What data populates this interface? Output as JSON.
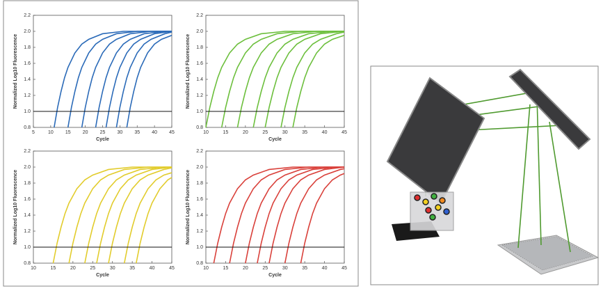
{
  "chart_data": [
    {
      "type": "line",
      "x_label": "Cycle",
      "y_label": "Normalized Log10 Fluorescence",
      "color": "#2a6ab8",
      "threshold": 1,
      "xlim": [
        5,
        45
      ],
      "xticks": [
        5,
        10,
        15,
        20,
        25,
        30,
        35,
        40,
        45
      ],
      "ylim": [
        0.8,
        2.2
      ],
      "yticks": [
        0.8,
        {
          "value": 1,
          "label": "1.0"
        },
        1.2,
        1.4,
        1.6,
        1.8,
        {
          "value": 2,
          "label": "2.0"
        },
        2.2
      ],
      "series": [
        {
          "x": [
            11,
            12,
            13,
            14,
            15,
            17,
            19,
            21,
            25,
            31,
            45
          ],
          "values": [
            0.8,
            1.05,
            1.25,
            1.42,
            1.55,
            1.73,
            1.84,
            1.9,
            1.97,
            2,
            2
          ]
        },
        {
          "x": [
            15,
            16,
            17,
            18,
            19,
            21,
            23,
            25,
            29,
            35,
            45
          ],
          "values": [
            0.8,
            1.05,
            1.25,
            1.42,
            1.55,
            1.73,
            1.84,
            1.9,
            1.97,
            2,
            2
          ]
        },
        {
          "x": [
            19,
            20,
            21,
            22,
            23,
            25,
            27,
            29,
            33,
            39,
            45
          ],
          "values": [
            0.8,
            1.05,
            1.25,
            1.42,
            1.55,
            1.73,
            1.84,
            1.9,
            1.97,
            2,
            2
          ]
        },
        {
          "x": [
            23,
            24,
            25,
            26,
            27,
            29,
            31,
            33,
            37,
            43,
            45
          ],
          "values": [
            0.8,
            1.05,
            1.25,
            1.42,
            1.55,
            1.73,
            1.84,
            1.9,
            1.97,
            2,
            2
          ]
        },
        {
          "x": [
            26,
            27,
            28,
            29,
            30,
            32,
            34,
            36,
            40,
            45
          ],
          "values": [
            0.8,
            1.05,
            1.25,
            1.42,
            1.55,
            1.73,
            1.84,
            1.9,
            1.97,
            2
          ]
        },
        {
          "x": [
            29,
            30,
            31,
            32,
            33,
            35,
            37,
            39,
            43,
            45
          ],
          "values": [
            0.8,
            1.05,
            1.25,
            1.42,
            1.55,
            1.73,
            1.84,
            1.9,
            1.97,
            1.99
          ]
        },
        {
          "x": [
            32,
            33,
            34,
            35,
            36,
            38,
            40,
            42,
            45
          ],
          "values": [
            0.8,
            1.05,
            1.25,
            1.42,
            1.55,
            1.73,
            1.84,
            1.9,
            1.95
          ]
        }
      ]
    },
    {
      "type": "line",
      "x_label": "Cycle",
      "y_label": "Normalized Log10 Fluorescence",
      "color": "#6cbf3c",
      "threshold": 1,
      "xlim": [
        10,
        45
      ],
      "xticks": [
        10,
        15,
        20,
        25,
        30,
        35,
        40,
        45
      ],
      "ylim": [
        0.8,
        2.2
      ],
      "yticks": [
        0.8,
        {
          "value": 1,
          "label": "1.0"
        },
        1.2,
        1.4,
        1.6,
        1.8,
        {
          "value": 2,
          "label": "2.0"
        },
        2.2
      ],
      "series": [
        {
          "x": [
            10,
            11,
            12,
            13,
            14,
            16,
            18,
            20,
            24,
            30,
            45
          ],
          "values": [
            0.8,
            1.05,
            1.25,
            1.42,
            1.55,
            1.73,
            1.84,
            1.9,
            1.97,
            2,
            2
          ]
        },
        {
          "x": [
            14,
            15,
            16,
            17,
            18,
            20,
            22,
            24,
            28,
            34,
            45
          ],
          "values": [
            0.8,
            1.05,
            1.25,
            1.42,
            1.55,
            1.73,
            1.84,
            1.9,
            1.97,
            2,
            2
          ]
        },
        {
          "x": [
            18,
            19,
            20,
            21,
            22,
            24,
            26,
            28,
            32,
            38,
            45
          ],
          "values": [
            0.8,
            1.05,
            1.25,
            1.42,
            1.55,
            1.73,
            1.84,
            1.9,
            1.97,
            2,
            2
          ]
        },
        {
          "x": [
            22,
            23,
            24,
            25,
            26,
            28,
            30,
            32,
            36,
            42,
            45
          ],
          "values": [
            0.8,
            1.05,
            1.25,
            1.42,
            1.55,
            1.73,
            1.84,
            1.9,
            1.97,
            2,
            2
          ]
        },
        {
          "x": [
            25,
            26,
            27,
            28,
            29,
            31,
            33,
            35,
            39,
            45
          ],
          "values": [
            0.8,
            1.05,
            1.25,
            1.42,
            1.55,
            1.73,
            1.84,
            1.9,
            1.97,
            2
          ]
        },
        {
          "x": [
            29,
            30,
            31,
            32,
            33,
            35,
            37,
            39,
            43,
            45
          ],
          "values": [
            0.8,
            1.05,
            1.25,
            1.42,
            1.55,
            1.73,
            1.84,
            1.9,
            1.97,
            1.99
          ]
        },
        {
          "x": [
            32,
            33,
            34,
            35,
            36,
            38,
            40,
            42,
            45
          ],
          "values": [
            0.8,
            1.05,
            1.25,
            1.42,
            1.55,
            1.73,
            1.84,
            1.9,
            1.95
          ]
        }
      ]
    },
    {
      "type": "line",
      "x_label": "Cycle",
      "y_label": "Normalized Log10 Fluorescence",
      "color": "#e2cc2c",
      "threshold": 1,
      "xlim": [
        10,
        45
      ],
      "xticks": [
        10,
        15,
        20,
        25,
        30,
        35,
        40,
        45
      ],
      "ylim": [
        0.8,
        2.2
      ],
      "yticks": [
        0.8,
        {
          "value": 1,
          "label": "1.0"
        },
        1.2,
        1.4,
        1.6,
        1.8,
        {
          "value": 2,
          "label": "2.0"
        },
        2.2
      ],
      "series": [
        {
          "x": [
            15,
            16,
            17,
            18,
            19,
            21,
            23,
            25,
            29,
            35,
            45
          ],
          "values": [
            0.8,
            1.05,
            1.25,
            1.42,
            1.55,
            1.73,
            1.84,
            1.9,
            1.97,
            2,
            2
          ]
        },
        {
          "x": [
            19,
            20,
            21,
            22,
            23,
            25,
            27,
            29,
            33,
            39,
            45
          ],
          "values": [
            0.8,
            1.05,
            1.25,
            1.42,
            1.55,
            1.73,
            1.84,
            1.9,
            1.97,
            2,
            2
          ]
        },
        {
          "x": [
            23,
            24,
            25,
            26,
            27,
            29,
            31,
            33,
            37,
            43,
            45
          ],
          "values": [
            0.8,
            1.05,
            1.25,
            1.42,
            1.55,
            1.73,
            1.84,
            1.9,
            1.97,
            2,
            2
          ]
        },
        {
          "x": [
            26,
            27,
            28,
            29,
            30,
            32,
            34,
            36,
            40,
            45
          ],
          "values": [
            0.8,
            1.05,
            1.25,
            1.42,
            1.55,
            1.73,
            1.84,
            1.9,
            1.97,
            2
          ]
        },
        {
          "x": [
            29,
            30,
            31,
            32,
            33,
            35,
            37,
            39,
            43,
            45
          ],
          "values": [
            0.8,
            1.05,
            1.25,
            1.42,
            1.55,
            1.73,
            1.84,
            1.9,
            1.97,
            1.99
          ]
        },
        {
          "x": [
            33,
            34,
            35,
            36,
            37,
            39,
            41,
            43,
            45
          ],
          "values": [
            0.8,
            1.05,
            1.25,
            1.42,
            1.55,
            1.73,
            1.84,
            1.9,
            1.93
          ]
        },
        {
          "x": [
            36,
            37,
            38,
            39,
            40,
            42,
            44,
            45
          ],
          "values": [
            0.8,
            1.05,
            1.25,
            1.42,
            1.55,
            1.73,
            1.84,
            1.87
          ]
        }
      ]
    },
    {
      "type": "line",
      "x_label": "Cycle",
      "y_label": "Normalized Log10 Fluorescence",
      "color": "#d9403a",
      "threshold": 1,
      "xlim": [
        10,
        45
      ],
      "xticks": [
        10,
        15,
        20,
        25,
        30,
        35,
        40,
        45
      ],
      "ylim": [
        0.8,
        2.2
      ],
      "yticks": [
        0.8,
        {
          "value": 1,
          "label": "1.0"
        },
        1.2,
        1.4,
        1.6,
        1.8,
        {
          "value": 2,
          "label": "2.0"
        },
        2.2
      ],
      "series": [
        {
          "x": [
            12,
            13,
            14,
            15,
            16,
            18,
            20,
            22,
            26,
            32,
            45
          ],
          "values": [
            0.8,
            1.05,
            1.25,
            1.42,
            1.55,
            1.73,
            1.84,
            1.9,
            1.97,
            2,
            2
          ]
        },
        {
          "x": [
            16,
            17,
            18,
            19,
            20,
            22,
            24,
            26,
            30,
            36,
            45
          ],
          "values": [
            0.8,
            1.05,
            1.25,
            1.42,
            1.55,
            1.73,
            1.84,
            1.9,
            1.97,
            2,
            2
          ]
        },
        {
          "x": [
            20,
            21,
            22,
            23,
            24,
            26,
            28,
            30,
            34,
            40,
            45
          ],
          "values": [
            0.8,
            1.05,
            1.25,
            1.42,
            1.55,
            1.73,
            1.84,
            1.9,
            1.97,
            2,
            2
          ]
        },
        {
          "x": [
            23,
            24,
            25,
            26,
            27,
            29,
            31,
            33,
            37,
            43,
            45
          ],
          "values": [
            0.8,
            1.05,
            1.25,
            1.42,
            1.55,
            1.73,
            1.84,
            1.9,
            1.97,
            2,
            2
          ]
        },
        {
          "x": [
            26,
            27,
            28,
            29,
            30,
            32,
            34,
            36,
            40,
            45
          ],
          "values": [
            0.8,
            1.05,
            1.25,
            1.42,
            1.55,
            1.73,
            1.84,
            1.9,
            1.97,
            2
          ]
        },
        {
          "x": [
            30,
            31,
            32,
            33,
            34,
            36,
            38,
            40,
            44,
            45
          ],
          "values": [
            0.8,
            1.05,
            1.25,
            1.42,
            1.55,
            1.73,
            1.84,
            1.9,
            1.97,
            1.98
          ]
        },
        {
          "x": [
            34,
            35,
            36,
            37,
            38,
            40,
            42,
            44,
            45
          ],
          "values": [
            0.8,
            1.05,
            1.25,
            1.42,
            1.55,
            1.73,
            1.84,
            1.9,
            1.92
          ]
        }
      ]
    }
  ]
}
